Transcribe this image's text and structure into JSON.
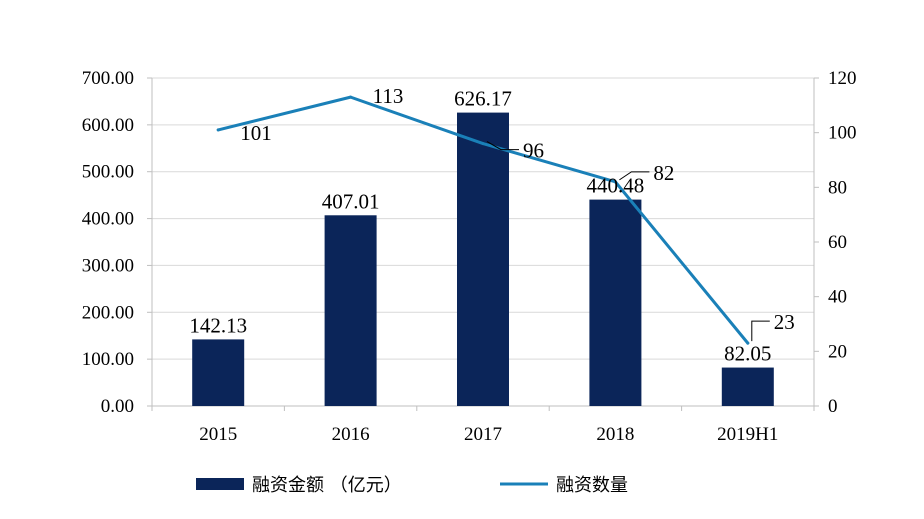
{
  "chart_data": {
    "type": "bar",
    "categories": [
      "2015",
      "2016",
      "2017",
      "2018",
      "2019H1"
    ],
    "series": [
      {
        "name": "融资金额 （亿元）",
        "type": "bar",
        "axis": "left",
        "values": [
          142.13,
          407.01,
          626.17,
          440.48,
          82.05
        ],
        "labels": [
          "142.13",
          "407.01",
          "626.17",
          "440.48",
          "82.05"
        ]
      },
      {
        "name": "融资数量",
        "type": "line",
        "axis": "right",
        "values": [
          101,
          113,
          96,
          82,
          23
        ],
        "labels": [
          "101",
          "113",
          "96",
          "82",
          "23"
        ]
      }
    ],
    "y_left": {
      "ylim": [
        0,
        700
      ],
      "ticks": [
        "0.00",
        "100.00",
        "200.00",
        "300.00",
        "400.00",
        "500.00",
        "600.00",
        "700.00"
      ]
    },
    "y_right": {
      "ylim": [
        0,
        120
      ],
      "ticks": [
        "0",
        "20",
        "40",
        "60",
        "80",
        "100",
        "120"
      ]
    },
    "grid": true,
    "legend": "bottom",
    "colors": {
      "bar": "#0b2559",
      "line": "#1a80b8",
      "grid": "#d9d9d9",
      "axis": "#bfbfbf"
    }
  }
}
